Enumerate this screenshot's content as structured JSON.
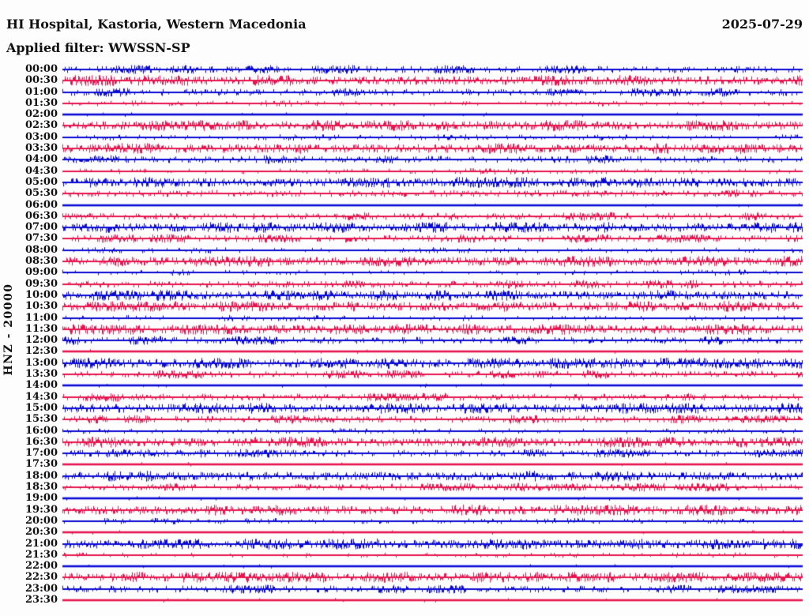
{
  "header": {
    "title": "HI Hospital, Kastoria, Western Macedonia",
    "date": "2025-07-29",
    "filter": "Applied filter: WWSSN-SP"
  },
  "axis": {
    "channel_label": "HNZ - 20000"
  },
  "colors": {
    "trace_blue": "#0B0BD6",
    "trace_red": "#E8154F",
    "text": "#111111",
    "background": "#FDFDFD"
  },
  "chart_data": {
    "type": "line",
    "title": "24-hour helicorder seismogram",
    "station": "HI Hospital, Kastoria, Western Macedonia",
    "date": "2025-07-29",
    "filter": "WWSSN-SP",
    "minutes_per_row": 30,
    "legend_position": "none",
    "grid": false,
    "rows": [
      {
        "time": "00:00",
        "color": "blue",
        "noise_level": 2
      },
      {
        "time": "00:30",
        "color": "red",
        "noise_level": 3
      },
      {
        "time": "01:00",
        "color": "blue",
        "noise_level": 2
      },
      {
        "time": "01:30",
        "color": "red",
        "noise_level": 1
      },
      {
        "time": "02:00",
        "color": "blue",
        "noise_level": 0
      },
      {
        "time": "02:30",
        "color": "red",
        "noise_level": 3
      },
      {
        "time": "03:00",
        "color": "blue",
        "noise_level": 1
      },
      {
        "time": "03:30",
        "color": "red",
        "noise_level": 3
      },
      {
        "time": "04:00",
        "color": "blue",
        "noise_level": 2
      },
      {
        "time": "04:30",
        "color": "red",
        "noise_level": 1
      },
      {
        "time": "05:00",
        "color": "blue",
        "noise_level": 3
      },
      {
        "time": "05:30",
        "color": "red",
        "noise_level": 2
      },
      {
        "time": "06:00",
        "color": "blue",
        "noise_level": 0
      },
      {
        "time": "06:30",
        "color": "red",
        "noise_level": 2
      },
      {
        "time": "07:00",
        "color": "blue",
        "noise_level": 3
      },
      {
        "time": "07:30",
        "color": "red",
        "noise_level": 2
      },
      {
        "time": "08:00",
        "color": "blue",
        "noise_level": 1
      },
      {
        "time": "08:30",
        "color": "red",
        "noise_level": 3
      },
      {
        "time": "09:00",
        "color": "blue",
        "noise_level": 1
      },
      {
        "time": "09:30",
        "color": "red",
        "noise_level": 2
      },
      {
        "time": "10:00",
        "color": "blue",
        "noise_level": 3
      },
      {
        "time": "10:30",
        "color": "red",
        "noise_level": 3
      },
      {
        "time": "11:00",
        "color": "blue",
        "noise_level": 1
      },
      {
        "time": "11:30",
        "color": "red",
        "noise_level": 3
      },
      {
        "time": "12:00",
        "color": "blue",
        "noise_level": 2
      },
      {
        "time": "12:30",
        "color": "red",
        "noise_level": 0
      },
      {
        "time": "13:00",
        "color": "blue",
        "noise_level": 3
      },
      {
        "time": "13:30",
        "color": "red",
        "noise_level": 2
      },
      {
        "time": "14:00",
        "color": "blue",
        "noise_level": 0
      },
      {
        "time": "14:30",
        "color": "red",
        "noise_level": 2
      },
      {
        "time": "15:00",
        "color": "blue",
        "noise_level": 3
      },
      {
        "time": "15:30",
        "color": "red",
        "noise_level": 2
      },
      {
        "time": "16:00",
        "color": "blue",
        "noise_level": 1
      },
      {
        "time": "16:30",
        "color": "red",
        "noise_level": 3
      },
      {
        "time": "17:00",
        "color": "blue",
        "noise_level": 2
      },
      {
        "time": "17:30",
        "color": "red",
        "noise_level": 0
      },
      {
        "time": "18:00",
        "color": "blue",
        "noise_level": 3
      },
      {
        "time": "18:30",
        "color": "red",
        "noise_level": 2
      },
      {
        "time": "19:00",
        "color": "blue",
        "noise_level": 0
      },
      {
        "time": "19:30",
        "color": "red",
        "noise_level": 3
      },
      {
        "time": "20:00",
        "color": "blue",
        "noise_level": 1
      },
      {
        "time": "20:30",
        "color": "red",
        "noise_level": 0
      },
      {
        "time": "21:00",
        "color": "blue",
        "noise_level": 3
      },
      {
        "time": "21:30",
        "color": "red",
        "noise_level": 1
      },
      {
        "time": "22:00",
        "color": "blue",
        "noise_level": 0
      },
      {
        "time": "22:30",
        "color": "red",
        "noise_level": 3
      },
      {
        "time": "23:00",
        "color": "blue",
        "noise_level": 2
      },
      {
        "time": "23:30",
        "color": "red",
        "noise_level": 0
      }
    ]
  }
}
